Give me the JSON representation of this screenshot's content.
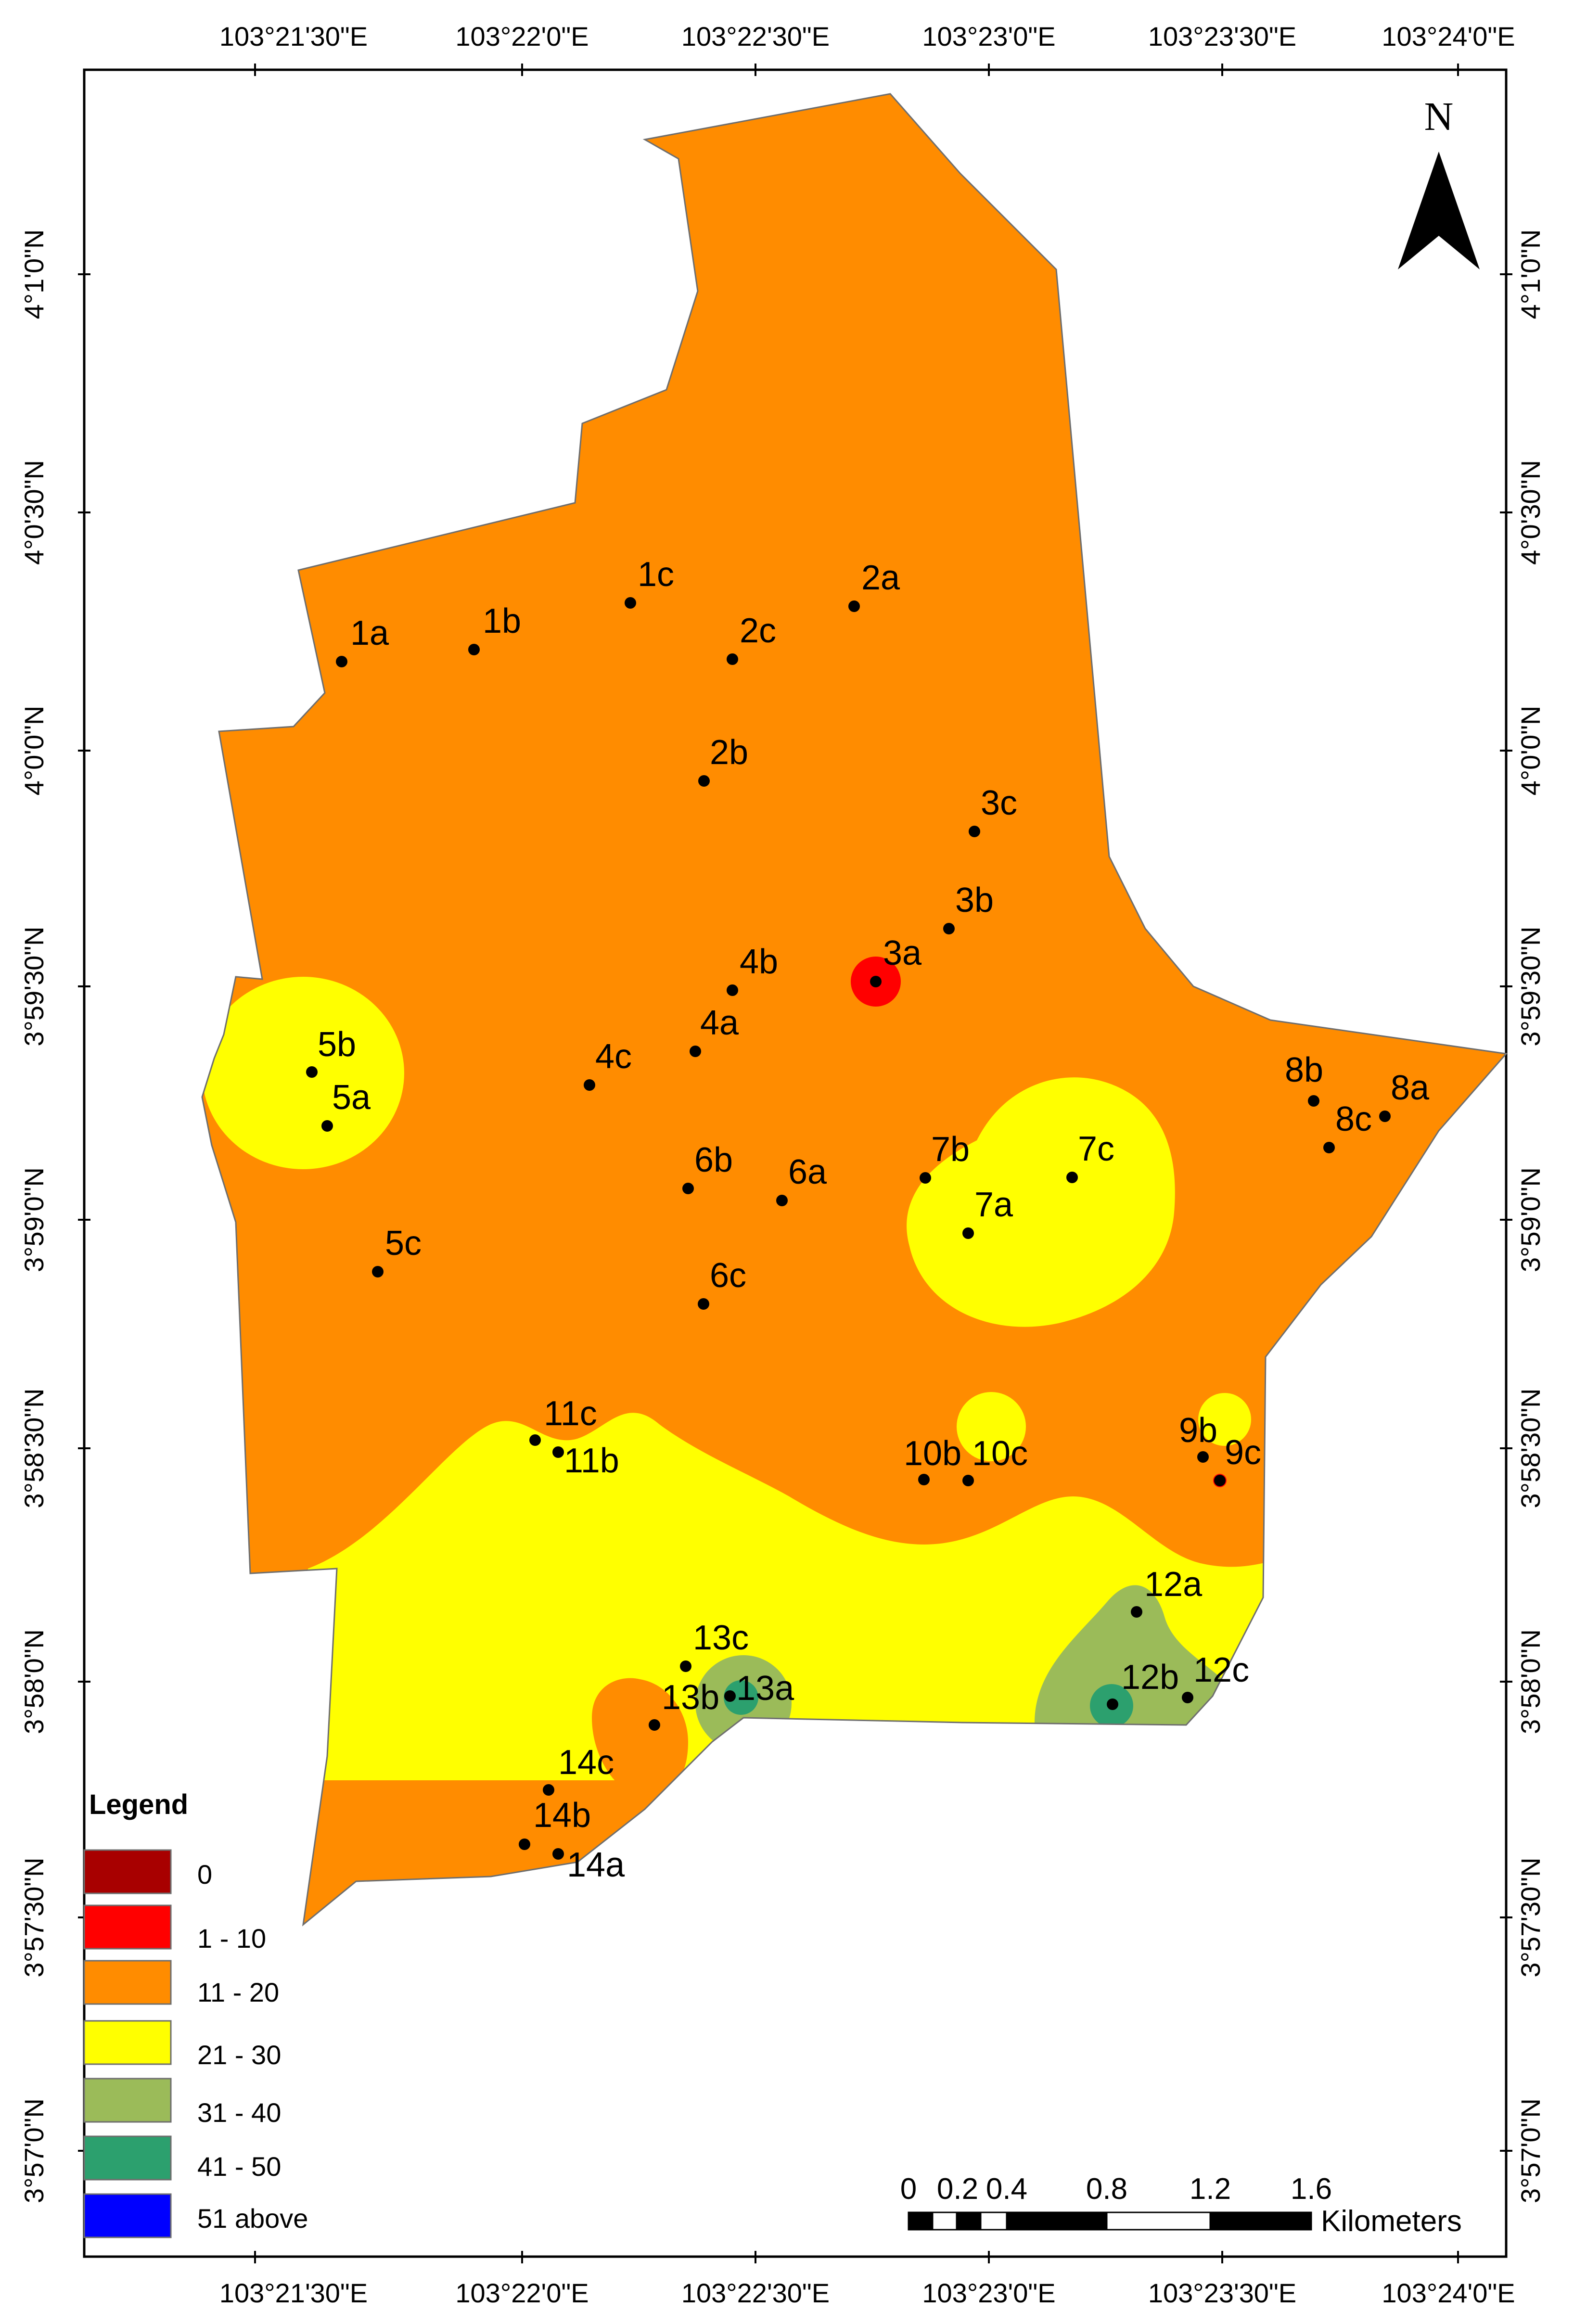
{
  "map": {
    "top_ticks": [
      "103°21'30\"E",
      "103°22'0\"E",
      "103°22'30\"E",
      "103°23'0\"E",
      "103°23'30\"E",
      "103°24'0\"E"
    ],
    "bottom_ticks": [
      "103°21'30\"E",
      "103°22'0\"E",
      "103°22'30\"E",
      "103°23'0\"E",
      "103°23'30\"E",
      "103°24'0\"E"
    ],
    "left_ticks": [
      "4°1'0\"N",
      "4°0'30\"N",
      "4°0'0\"N",
      "3°59'30\"N",
      "3°59'0\"N",
      "3°58'30\"N",
      "3°58'0\"N",
      "3°57'30\"N",
      "3°57'0\"N"
    ],
    "right_ticks": [
      "4°1'0\"N",
      "4°0'30\"N",
      "4°0'0\"N",
      "3°59'30\"N",
      "3°59'0\"N",
      "3°58'30\"N",
      "3°58'0\"N",
      "3°57'30\"N",
      "3°57'0\"N"
    ],
    "north_label": "N",
    "points": [
      "1a",
      "1b",
      "1c",
      "2a",
      "2b",
      "2c",
      "3a",
      "3b",
      "3c",
      "4a",
      "4b",
      "4c",
      "5a",
      "5b",
      "5c",
      "6a",
      "6b",
      "6c",
      "7a",
      "7b",
      "7c",
      "8a",
      "8b",
      "8c",
      "9b",
      "9c",
      "10b",
      "10c",
      "11b",
      "11c",
      "12a",
      "12b",
      "12c",
      "13a",
      "13b",
      "13c",
      "14a",
      "14b",
      "14c"
    ]
  },
  "legend": {
    "title": "Legend",
    "items": [
      {
        "label": "0",
        "color": "#a80000"
      },
      {
        "label": "1 - 10",
        "color": "#ff0000"
      },
      {
        "label": "11 - 20",
        "color": "#ff8c00"
      },
      {
        "label": "21 - 30",
        "color": "#ffff00"
      },
      {
        "label": "31 - 40",
        "color": "#9bbb59"
      },
      {
        "label": "41 - 50",
        "color": "#2ca06e"
      },
      {
        "label": "51 above",
        "color": "#0000ff"
      }
    ]
  },
  "scale_bar": {
    "ticks": [
      "0",
      "0.2",
      "0.4",
      "0.8",
      "1.2",
      "1.6"
    ],
    "unit": "Kilometers"
  }
}
